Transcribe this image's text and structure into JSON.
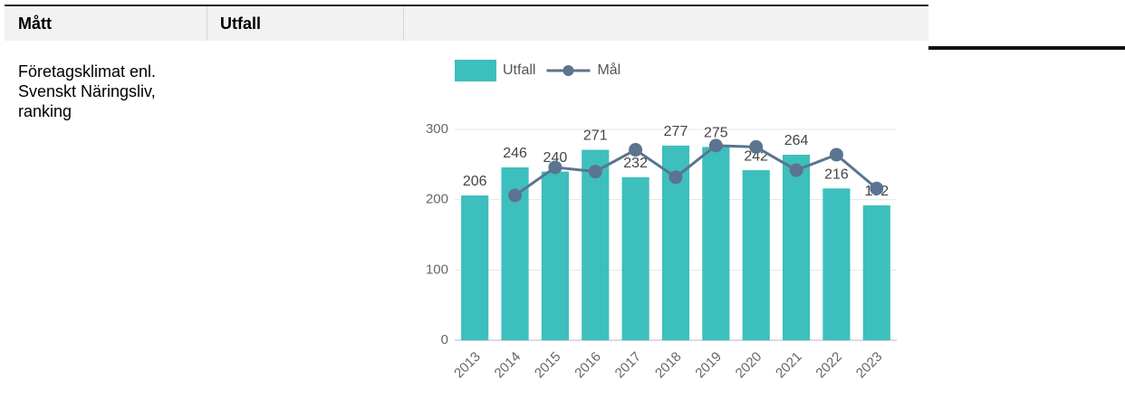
{
  "table": {
    "headers": [
      "Mått",
      "Utfall"
    ],
    "rows": [
      [
        "Företagsklimat enl. Svenskt Näringsliv, ranking"
      ]
    ]
  },
  "chart_data": {
    "type": "bar",
    "categories": [
      "2013",
      "2014",
      "2015",
      "2016",
      "2017",
      "2018",
      "2019",
      "2020",
      "2021",
      "2022",
      "2023"
    ],
    "series": [
      {
        "name": "Utfall",
        "type": "bar",
        "color": "#3dbfbd",
        "values": [
          206,
          246,
          240,
          271,
          232,
          277,
          275,
          242,
          264,
          216,
          192
        ]
      },
      {
        "name": "Mål",
        "type": "line",
        "color": "#5b7490",
        "values": [
          null,
          206,
          246,
          240,
          271,
          232,
          277,
          275,
          242,
          264,
          216
        ]
      }
    ],
    "ylim": [
      0,
      300
    ],
    "yticks": [
      0,
      100,
      200,
      300
    ],
    "grid": true,
    "legend": "top"
  }
}
